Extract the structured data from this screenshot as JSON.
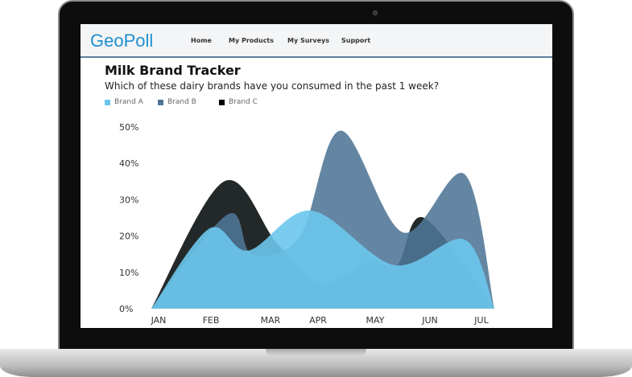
{
  "navbar": {
    "logo": "GeoPoll",
    "items": [
      "Home",
      "My Products",
      "My Surveys",
      "Support"
    ]
  },
  "chart_data": {
    "type": "area",
    "title": "Milk Brand Tracker",
    "subtitle": "Which of these dairy brands have you consumed in the past 1 week?",
    "categories": [
      "JAN",
      "FEB",
      "MAR",
      "APR",
      "MAY",
      "JUN",
      "JUL"
    ],
    "yticks": [
      "0%",
      "10%",
      "20%",
      "30%",
      "40%",
      "50%"
    ],
    "ylim": [
      0,
      50
    ],
    "grid": false,
    "legend_position": "top-left",
    "series": [
      {
        "name": "Brand C",
        "color": "#232829",
        "points": [
          [
            0,
            0
          ],
          [
            1.27,
            35
          ],
          [
            2.2,
            18
          ],
          [
            2.97,
            7
          ],
          [
            3.8,
            13
          ],
          [
            4.3,
            12
          ],
          [
            4.77,
            25
          ],
          [
            6,
            0
          ]
        ]
      },
      {
        "name": "Brand B",
        "color": "#4f7596",
        "points": [
          [
            0,
            0
          ],
          [
            1.34,
            26
          ],
          [
            1.76,
            15
          ],
          [
            2.6,
            20
          ],
          [
            3.31,
            49
          ],
          [
            4.4,
            21
          ],
          [
            5.48,
            37
          ],
          [
            6,
            0
          ]
        ]
      },
      {
        "name": "Brand A",
        "color": "#6cc6ec",
        "points": [
          [
            0,
            0
          ],
          [
            1.01,
            22
          ],
          [
            1.7,
            16
          ],
          [
            2.8,
            27
          ],
          [
            4.25,
            12
          ],
          [
            5.48,
            19
          ],
          [
            6,
            0
          ]
        ]
      }
    ]
  }
}
